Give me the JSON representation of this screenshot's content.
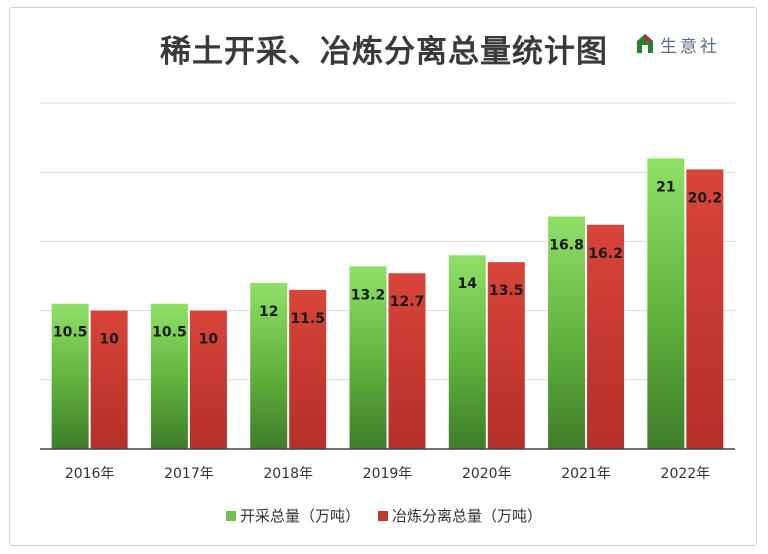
{
  "watermark": {
    "text": "生意社"
  },
  "chart_data": {
    "type": "bar",
    "title": "稀土开采、冶炼分离总量统计图",
    "categories": [
      "2016年",
      "2017年",
      "2018年",
      "2019年",
      "2020年",
      "2021年",
      "2022年"
    ],
    "series": [
      {
        "name": "开采总量（万吨）",
        "values": [
          10.5,
          10.5,
          12,
          13.2,
          14,
          16.8,
          21
        ],
        "labels": [
          "10.5",
          "10.5",
          "12",
          "13.2",
          "14",
          "16.8",
          "21"
        ],
        "color": "#6cc24a"
      },
      {
        "name": "冶炼分离总量（万吨）",
        "values": [
          10,
          10,
          11.5,
          12.7,
          13.5,
          16.2,
          20.2
        ],
        "labels": [
          "10",
          "10",
          "11.5",
          "12.7",
          "13.5",
          "16.2",
          "20.2"
        ],
        "color": "#c0392b"
      }
    ],
    "ylim": [
      0,
      25
    ],
    "grid": true,
    "legend": "bottom-center"
  }
}
